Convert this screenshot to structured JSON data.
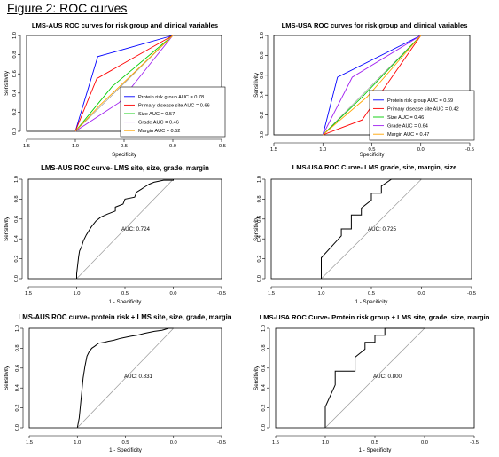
{
  "figure_title": "Figure 2: ROC curves",
  "chart_data": [
    {
      "type": "line",
      "title": "LMS-AUS ROC curves for risk group and clinical variables",
      "xlabel": "Specificity",
      "ylabel": "Sensitivity",
      "xlim": [
        1.5,
        -0.5
      ],
      "ylim": [
        0,
        1
      ],
      "x_ticks": [
        "1.5",
        "1.0",
        "0.5",
        "0.0",
        "-0.5"
      ],
      "y_ticks": [
        "0.0",
        "0.2",
        "0.4",
        "0.6",
        "0.8",
        "1.0"
      ],
      "diagonal": true,
      "legend_position": "bottom-right",
      "series": [
        {
          "name": "Protein risk group AUC = 0.78",
          "color": "#0000ff",
          "x": [
            1.0,
            0.77,
            0.0
          ],
          "y": [
            0.0,
            0.78,
            1.0
          ]
        },
        {
          "name": "Primary disease site AUC = 0.66",
          "color": "#ff0000",
          "x": [
            1.0,
            0.78,
            0.0
          ],
          "y": [
            0.0,
            0.55,
            1.0
          ]
        },
        {
          "name": "Size AUC = 0.57",
          "color": "#00cc00",
          "x": [
            1.0,
            0.62,
            0.0
          ],
          "y": [
            0.0,
            0.47,
            1.0
          ]
        },
        {
          "name": "Grade AUC = 0.46",
          "color": "#a020f0",
          "x": [
            1.0,
            0.55,
            0.0
          ],
          "y": [
            0.0,
            0.3,
            1.0
          ]
        },
        {
          "name": "Margin AUC = 0.52",
          "color": "#ffa500",
          "x": [
            1.0,
            0.75,
            0.0
          ],
          "y": [
            0.0,
            0.27,
            1.0
          ]
        }
      ]
    },
    {
      "type": "line",
      "title": "LMS-USA ROC curves for risk group and clinical variables",
      "xlabel": "Specificity",
      "ylabel": "Sensitivity",
      "xlim": [
        1.5,
        -0.5
      ],
      "ylim": [
        0,
        1
      ],
      "x_ticks": [
        "1.5",
        "1.0",
        "0.5",
        "0.0",
        "-0.5"
      ],
      "y_ticks": [
        "0.0",
        "0.2",
        "0.4",
        "0.6",
        "0.8",
        "1.0"
      ],
      "diagonal": true,
      "legend_position": "bottom-right",
      "series": [
        {
          "name": "Protein risk group AUC = 0.69",
          "color": "#0000ff",
          "x": [
            1.0,
            0.85,
            0.0
          ],
          "y": [
            0.0,
            0.58,
            1.0
          ]
        },
        {
          "name": "Primary disease site AUC = 0.42",
          "color": "#ff0000",
          "x": [
            1.0,
            0.6,
            0.0
          ],
          "y": [
            0.0,
            0.15,
            1.0
          ]
        },
        {
          "name": "Size AUC = 0.46",
          "color": "#00cc00",
          "x": [
            1.0,
            0.6,
            0.0
          ],
          "y": [
            0.0,
            0.38,
            1.0
          ]
        },
        {
          "name": "Grade AUC = 0.64",
          "color": "#a020f0",
          "x": [
            1.0,
            0.7,
            0.0
          ],
          "y": [
            0.0,
            0.58,
            1.0
          ]
        },
        {
          "name": "Margin AUC = 0.47",
          "color": "#ffa500",
          "x": [
            1.0,
            0.55,
            0.0
          ],
          "y": [
            0.0,
            0.38,
            1.0
          ]
        }
      ]
    },
    {
      "type": "line",
      "title": "LMS-AUS ROC curve- LMS site, size, grade, margin",
      "xlabel": "1 - Specificity",
      "ylabel": "Sensitivity",
      "xlim": [
        1.5,
        -0.5
      ],
      "ylim": [
        0,
        1
      ],
      "x_ticks": [
        "1.5",
        "1.0",
        "0.5",
        "0.0",
        "-0.5"
      ],
      "y_ticks": [
        "0.0",
        "0.2",
        "0.4",
        "0.6",
        "0.8",
        "1.0"
      ],
      "diagonal": true,
      "annotation": "AUC: 0.724",
      "series": [
        {
          "color": "#000000",
          "x": [
            1.0,
            1.0,
            0.98,
            0.97,
            0.95,
            0.93,
            0.9,
            0.85,
            0.8,
            0.75,
            0.68,
            0.6,
            0.6,
            0.52,
            0.5,
            0.4,
            0.38,
            0.33,
            0.3,
            0.25,
            0.2,
            0.1,
            0.0,
            0.0
          ],
          "y": [
            0.0,
            0.05,
            0.22,
            0.28,
            0.32,
            0.38,
            0.44,
            0.52,
            0.58,
            0.62,
            0.65,
            0.68,
            0.72,
            0.75,
            0.8,
            0.82,
            0.87,
            0.9,
            0.92,
            0.95,
            0.97,
            0.99,
            0.99,
            1.0
          ]
        }
      ]
    },
    {
      "type": "line",
      "title": "LMS-USA ROC Curve- LMS grade, site, margin, size",
      "xlabel": "1 - Specificity",
      "ylabel": "Sensitivity",
      "xlim": [
        1.5,
        -0.5
      ],
      "ylim": [
        0,
        1
      ],
      "x_ticks": [
        "1.5",
        "1.0",
        "0.5",
        "0.0",
        "-0.5"
      ],
      "y_ticks": [
        "0.0",
        "0.2",
        "0.4",
        "0.6",
        "0.8",
        "1.0"
      ],
      "diagonal": true,
      "annotation": "AUC: 0.725",
      "series": [
        {
          "color": "#000000",
          "x": [
            1.0,
            1.0,
            0.8,
            0.8,
            0.7,
            0.7,
            0.6,
            0.6,
            0.5,
            0.5,
            0.4,
            0.4,
            0.3,
            0.0
          ],
          "y": [
            0.0,
            0.21,
            0.43,
            0.5,
            0.5,
            0.64,
            0.64,
            0.71,
            0.79,
            0.86,
            0.86,
            0.93,
            1.0,
            1.0
          ]
        }
      ]
    },
    {
      "type": "line",
      "title": "LMS-AUS ROC curve- protein risk + LMS site, size, grade, margin",
      "xlabel": "1 - Specificity",
      "ylabel": "Sensitivity",
      "xlim": [
        1.5,
        -0.5
      ],
      "ylim": [
        0,
        1
      ],
      "x_ticks": [
        "1.5",
        "1.0",
        "0.5",
        "0.0",
        "-0.5"
      ],
      "y_ticks": [
        "0.0",
        "0.2",
        "0.4",
        "0.6",
        "0.8",
        "1.0"
      ],
      "diagonal": true,
      "annotation": "AUC: 0.831",
      "series": [
        {
          "color": "#000000",
          "x": [
            1.0,
            0.98,
            0.96,
            0.94,
            0.92,
            0.9,
            0.88,
            0.85,
            0.82,
            0.78,
            0.72,
            0.68,
            0.62,
            0.55,
            0.45,
            0.38,
            0.3,
            0.2,
            0.12,
            0.05,
            0.0
          ],
          "y": [
            0.0,
            0.1,
            0.3,
            0.5,
            0.62,
            0.72,
            0.76,
            0.8,
            0.82,
            0.85,
            0.86,
            0.87,
            0.88,
            0.9,
            0.92,
            0.93,
            0.95,
            0.97,
            0.98,
            1.0,
            1.0
          ]
        }
      ]
    },
    {
      "type": "line",
      "title": "LMS-USA ROC Curve- Protein risk group + LMS site, grade, size, margin",
      "xlabel": "1 - Specificity",
      "ylabel": "Sensitivity",
      "xlim": [
        1.5,
        -0.5
      ],
      "ylim": [
        0,
        1
      ],
      "x_ticks": [
        "1.5",
        "1.0",
        "0.5",
        "0.0",
        "-0.5"
      ],
      "y_ticks": [
        "0.0",
        "0.2",
        "0.4",
        "0.6",
        "0.8",
        "1.0"
      ],
      "diagonal": true,
      "annotation": "AUC: 0.800",
      "series": [
        {
          "color": "#000000",
          "x": [
            1.0,
            1.0,
            0.9,
            0.9,
            0.8,
            0.8,
            0.7,
            0.7,
            0.6,
            0.6,
            0.5,
            0.5,
            0.4,
            0.4,
            0.3,
            0.3,
            0.0
          ],
          "y": [
            0.0,
            0.21,
            0.43,
            0.57,
            0.57,
            0.57,
            0.57,
            0.71,
            0.79,
            0.86,
            0.86,
            0.93,
            0.93,
            1.0,
            1.0,
            1.0,
            1.0
          ]
        }
      ]
    }
  ]
}
